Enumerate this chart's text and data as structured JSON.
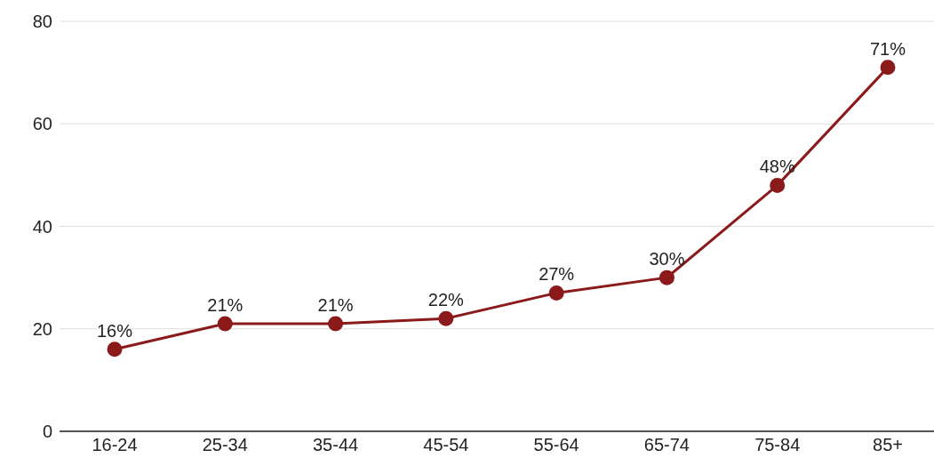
{
  "chart_data": {
    "type": "line",
    "categories": [
      "16-24",
      "25-34",
      "35-44",
      "45-54",
      "55-64",
      "65-74",
      "75-84",
      "85+"
    ],
    "series": [
      {
        "color": "#8b1a1a",
        "values": [
          16,
          21,
          21,
          22,
          27,
          30,
          48,
          71
        ],
        "value_labels": [
          "16%",
          "21%",
          "21%",
          "22%",
          "27%",
          "30%",
          "48%",
          "71%"
        ]
      }
    ],
    "ylim": [
      0,
      80
    ],
    "yticks": [
      0,
      20,
      40,
      60,
      80
    ],
    "grid": "y",
    "marker": "circle",
    "line_style": "solid"
  }
}
